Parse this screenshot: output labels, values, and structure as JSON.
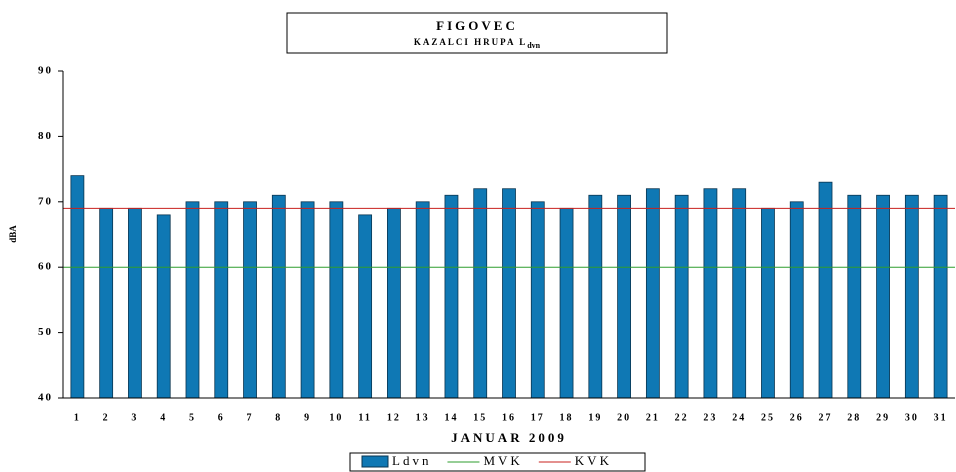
{
  "chart_data": {
    "type": "bar",
    "title": "FIGOVEC",
    "subtitle": "KAZALCI HRUPA L",
    "subtitle_subscript": "dvn",
    "x_label": "JANUAR 2009",
    "y_label": "dBA",
    "categories": [
      "1",
      "2",
      "3",
      "4",
      "5",
      "6",
      "7",
      "8",
      "9",
      "10",
      "11",
      "12",
      "13",
      "14",
      "15",
      "16",
      "17",
      "18",
      "19",
      "20",
      "21",
      "22",
      "23",
      "24",
      "25",
      "26",
      "27",
      "28",
      "29",
      "30",
      "31"
    ],
    "series": [
      {
        "name": "Ldvn",
        "color": "#0f78b4",
        "values": [
          74,
          69,
          69,
          68,
          70,
          70,
          70,
          71,
          70,
          70,
          68,
          69,
          70,
          71,
          72,
          72,
          70,
          69,
          71,
          71,
          72,
          71,
          72,
          72,
          69,
          70,
          73,
          71,
          71,
          71,
          71
        ]
      }
    ],
    "reference_lines": [
      {
        "name": "MVK",
        "color": "#2e9e2e",
        "value": 60
      },
      {
        "name": "KVK",
        "color": "#c8201e",
        "value": 69
      }
    ],
    "ylim": [
      40,
      90
    ],
    "yticks": [
      40,
      50,
      60,
      70,
      80,
      90
    ]
  }
}
